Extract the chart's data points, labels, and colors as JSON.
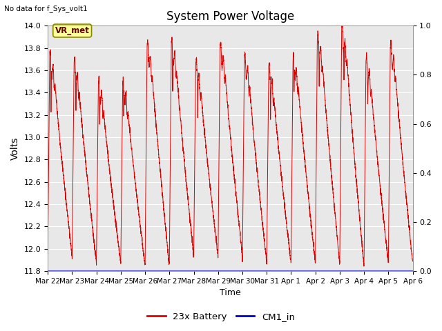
{
  "title": "System Power Voltage",
  "top_left_text": "No data for f_Sys_volt1",
  "ylabel_left": "Volts",
  "xlabel": "Time",
  "ylim_left": [
    11.8,
    14.0
  ],
  "ylim_right": [
    0.0,
    1.0
  ],
  "yticks_left": [
    11.8,
    12.0,
    12.2,
    12.4,
    12.6,
    12.8,
    13.0,
    13.2,
    13.4,
    13.6,
    13.8,
    14.0
  ],
  "yticks_right": [
    0.0,
    0.2,
    0.4,
    0.6,
    0.8,
    1.0
  ],
  "fig_bg_color": "#ffffff",
  "plot_bg_color": "#e8e8e8",
  "line_color_battery": "#dd0000",
  "line_color_cm1": "#0000cc",
  "legend_labels": [
    "23x Battery",
    "CM1_in"
  ],
  "vr_met_label": "VR_met",
  "vr_met_bg": "#ffff99",
  "vr_met_border": "#888800",
  "x_tick_labels": [
    "Mar 22",
    "Mar 23",
    "Mar 24",
    "Mar 25",
    "Mar 26",
    "Mar 27",
    "Mar 28",
    "Mar 29",
    "Mar 30",
    "Mar 31",
    "Apr 1",
    "Apr 2",
    "Apr 3",
    "Apr 4",
    "Apr 5",
    "Apr 6"
  ],
  "num_days": 15
}
